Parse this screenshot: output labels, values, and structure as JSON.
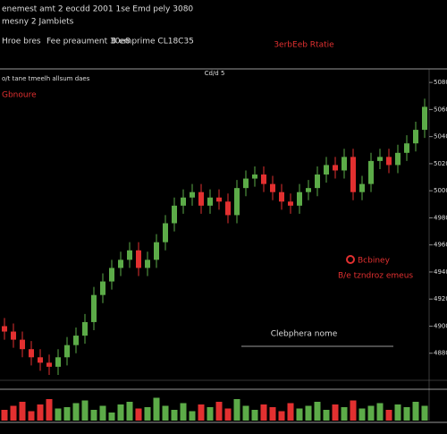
{
  "header": {
    "line1": "enemest amt 2 eocdd 2001 1se Emd  pely 3080",
    "line2": "mesny 2 Jambiets",
    "legend": [
      "Hroe bres",
      "Fee preaument 30e8",
      "B emprime CL18C35"
    ],
    "badge": "3erbEeb Rtatie",
    "subline": "o/t tane tmeelh allsum daes",
    "top_label": "Cd/d 5"
  },
  "chart_data": {
    "type": "candlestick",
    "open": [
      4900,
      4896,
      4890,
      4883,
      4877,
      4873,
      4870,
      4877,
      4886,
      4893,
      4903,
      4923,
      4933,
      4943,
      4949,
      4956,
      4943,
      4949,
      4962,
      4976,
      4989,
      4995,
      4999,
      4989,
      4995,
      4992,
      4982,
      5002,
      5009,
      5012,
      5005,
      4999,
      4992,
      4989,
      4999,
      5002,
      5012,
      5019,
      5015,
      5025,
      4999,
      5005,
      5022,
      5025,
      5019,
      5028,
      5035,
      5045
    ],
    "high": [
      4906,
      4902,
      4896,
      4889,
      4883,
      4879,
      4883,
      4892,
      4899,
      4909,
      4929,
      4939,
      4949,
      4955,
      4962,
      4962,
      4955,
      4968,
      4982,
      4995,
      5001,
      5005,
      5005,
      5001,
      5001,
      4998,
      5008,
      5015,
      5018,
      5018,
      5011,
      5005,
      4998,
      5005,
      5008,
      5018,
      5025,
      5025,
      5031,
      5031,
      5011,
      5028,
      5031,
      5031,
      5034,
      5041,
      5051,
      5068
    ],
    "low": [
      4890,
      4884,
      4877,
      4871,
      4867,
      4864,
      4864,
      4871,
      4880,
      4887,
      4897,
      4917,
      4927,
      4937,
      4943,
      4937,
      4937,
      4943,
      4956,
      4970,
      4983,
      4989,
      4983,
      4983,
      4986,
      4976,
      4976,
      4996,
      5003,
      4999,
      4993,
      4986,
      4983,
      4983,
      4993,
      4996,
      5006,
      5009,
      5009,
      4993,
      4993,
      4999,
      5016,
      5013,
      5013,
      5022,
      5029,
      5039
    ],
    "close": [
      4896,
      4890,
      4883,
      4877,
      4873,
      4870,
      4877,
      4886,
      4893,
      4903,
      4923,
      4933,
      4943,
      4949,
      4956,
      4943,
      4949,
      4962,
      4976,
      4989,
      4995,
      4999,
      4989,
      4995,
      4992,
      4982,
      5002,
      5009,
      5012,
      5005,
      4999,
      4992,
      4989,
      4999,
      5002,
      5012,
      5019,
      5015,
      5025,
      4999,
      5005,
      5022,
      5025,
      5019,
      5028,
      5035,
      5045,
      5062
    ],
    "ylim": [
      4860,
      5090
    ],
    "yticks": [
      4880,
      4900,
      4920,
      4940,
      4960,
      4980,
      5000,
      5020,
      5040,
      5060,
      5080
    ],
    "colors": {
      "up": "#5cab48",
      "down": "#e23030"
    },
    "volume": {
      "values": [
        40,
        55,
        70,
        35,
        60,
        80,
        45,
        50,
        65,
        75,
        40,
        55,
        30,
        60,
        70,
        45,
        50,
        85,
        55,
        40,
        65,
        35,
        60,
        50,
        70,
        45,
        80,
        55,
        40,
        60,
        50,
        35,
        65,
        45,
        55,
        70,
        40,
        60,
        50,
        75,
        45,
        55,
        65,
        40,
        60,
        50,
        70,
        55
      ],
      "ylim": [
        0,
        100
      ]
    },
    "annotations": [
      "Gbnoure",
      "Bcbiney",
      "B/e tzndroz emeus",
      "Clebphera nome"
    ]
  }
}
